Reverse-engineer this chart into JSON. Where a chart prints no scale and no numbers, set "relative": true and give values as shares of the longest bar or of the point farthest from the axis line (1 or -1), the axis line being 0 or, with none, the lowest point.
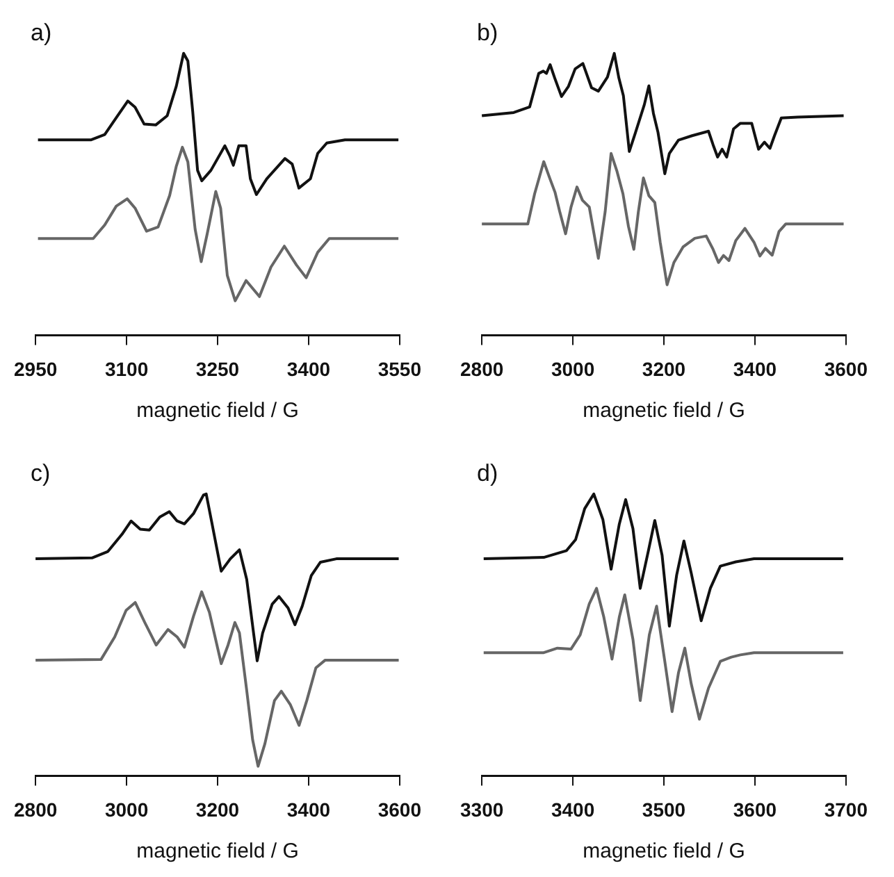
{
  "chart_data": [
    {
      "type": "line",
      "title": "a)",
      "xlabel": "magnetic field / G",
      "relative": true,
      "xlim": [
        2950,
        3550
      ],
      "xticks": [
        2950,
        3100,
        3250,
        3400,
        3550
      ],
      "series": [
        {
          "color": "#111111",
          "x": [
            2954,
            3041,
            3064,
            3083,
            3102,
            3114,
            3129,
            3148,
            3167,
            3182,
            3194,
            3201,
            3209,
            3217,
            3224,
            3239,
            3262,
            3270,
            3276,
            3285,
            3297,
            3304,
            3314,
            3331,
            3361,
            3373,
            3384,
            3403,
            3415,
            3430,
            3460,
            3548
          ],
          "values": [
            0.693,
            0.693,
            0.712,
            0.772,
            0.831,
            0.809,
            0.749,
            0.746,
            0.779,
            0.884,
            1.0,
            0.973,
            0.794,
            0.585,
            0.548,
            0.585,
            0.672,
            0.637,
            0.603,
            0.672,
            0.672,
            0.555,
            0.499,
            0.555,
            0.627,
            0.607,
            0.522,
            0.555,
            0.645,
            0.682,
            0.693,
            0.693
          ]
        },
        {
          "color": "#666666",
          "x": [
            2954,
            3045,
            3064,
            3083,
            3101,
            3114,
            3133,
            3152,
            3171,
            3182,
            3192,
            3201,
            3213,
            3223,
            3233,
            3247,
            3255,
            3266,
            3279,
            3297,
            3319,
            3338,
            3360,
            3380,
            3396,
            3415,
            3434,
            3548
          ],
          "values": [
            0.343,
            0.343,
            0.391,
            0.458,
            0.484,
            0.451,
            0.369,
            0.384,
            0.496,
            0.6,
            0.667,
            0.615,
            0.376,
            0.261,
            0.361,
            0.51,
            0.451,
            0.212,
            0.122,
            0.194,
            0.137,
            0.242,
            0.316,
            0.249,
            0.204,
            0.294,
            0.343,
            0.343
          ]
        }
      ]
    },
    {
      "type": "line",
      "title": "b)",
      "xlabel": "magnetic field / G",
      "relative": true,
      "xlim": [
        2800,
        3600
      ],
      "xticks": [
        2800,
        3000,
        3200,
        3400,
        3600
      ],
      "series": [
        {
          "color": "#111111",
          "x": [
            2800,
            2870,
            2905,
            2925,
            2935,
            2942,
            2950,
            2960,
            2975,
            2990,
            3005,
            3022,
            3041,
            3056,
            3076,
            3091,
            3101,
            3111,
            3124,
            3137,
            3157,
            3167,
            3177,
            3187,
            3202,
            3212,
            3232,
            3262,
            3298,
            3308,
            3318,
            3328,
            3338,
            3353,
            3368,
            3393,
            3408,
            3421,
            3433,
            3443,
            3458,
            3494,
            3595
          ],
          "values": [
            0.779,
            0.79,
            0.81,
            0.929,
            0.937,
            0.929,
            0.96,
            0.913,
            0.847,
            0.882,
            0.945,
            0.964,
            0.878,
            0.866,
            0.916,
            1.0,
            0.913,
            0.85,
            0.652,
            0.716,
            0.818,
            0.885,
            0.787,
            0.72,
            0.573,
            0.645,
            0.692,
            0.708,
            0.724,
            0.676,
            0.632,
            0.66,
            0.632,
            0.732,
            0.752,
            0.752,
            0.66,
            0.685,
            0.663,
            0.708,
            0.771,
            0.774,
            0.779
          ]
        },
        {
          "color": "#666666",
          "x": [
            2800,
            2901,
            2916,
            2936,
            2949,
            2961,
            2971,
            2984,
            2996,
            3009,
            3021,
            3036,
            3056,
            3071,
            3084,
            3097,
            3110,
            3122,
            3134,
            3144,
            3155,
            3167,
            3180,
            3192,
            3207,
            3222,
            3242,
            3268,
            3293,
            3308,
            3320,
            3331,
            3343,
            3358,
            3378,
            3398,
            3411,
            3423,
            3438,
            3453,
            3468,
            3595
          ],
          "values": [
            0.395,
            0.395,
            0.502,
            0.616,
            0.558,
            0.506,
            0.439,
            0.36,
            0.455,
            0.526,
            0.479,
            0.455,
            0.273,
            0.439,
            0.645,
            0.581,
            0.502,
            0.387,
            0.305,
            0.439,
            0.558,
            0.495,
            0.471,
            0.329,
            0.179,
            0.258,
            0.313,
            0.344,
            0.352,
            0.305,
            0.258,
            0.283,
            0.265,
            0.336,
            0.379,
            0.33,
            0.281,
            0.308,
            0.284,
            0.368,
            0.395,
            0.395
          ]
        }
      ]
    },
    {
      "type": "line",
      "title": "c)",
      "xlabel": "magnetic field / G",
      "relative": true,
      "xlim": [
        2800,
        3600
      ],
      "xticks": [
        2800,
        3000,
        3200,
        3400,
        3600
      ],
      "series": [
        {
          "color": "#111111",
          "x": [
            2800,
            2924,
            2959,
            2990,
            3010,
            3030,
            3050,
            3073,
            3094,
            3111,
            3127,
            3147,
            3169,
            3175,
            3187,
            3208,
            3228,
            3248,
            3264,
            3279,
            3287,
            3299,
            3320,
            3335,
            3355,
            3370,
            3386,
            3406,
            3426,
            3461,
            3598
          ],
          "values": [
            0.77,
            0.773,
            0.796,
            0.857,
            0.904,
            0.875,
            0.872,
            0.918,
            0.937,
            0.904,
            0.894,
            0.93,
            0.996,
            1.0,
            0.901,
            0.726,
            0.77,
            0.802,
            0.697,
            0.507,
            0.408,
            0.507,
            0.609,
            0.636,
            0.595,
            0.536,
            0.602,
            0.711,
            0.758,
            0.77,
            0.77
          ]
        },
        {
          "color": "#666666",
          "x": [
            2800,
            2944,
            2974,
            2999,
            3019,
            3040,
            3065,
            3091,
            3111,
            3127,
            3147,
            3165,
            3182,
            3208,
            3223,
            3238,
            3248,
            3264,
            3277,
            3289,
            3304,
            3325,
            3340,
            3360,
            3379,
            3396,
            3416,
            3436,
            3598
          ],
          "values": [
            0.41,
            0.413,
            0.493,
            0.587,
            0.615,
            0.544,
            0.464,
            0.519,
            0.493,
            0.456,
            0.566,
            0.653,
            0.58,
            0.398,
            0.464,
            0.544,
            0.507,
            0.303,
            0.128,
            0.034,
            0.114,
            0.267,
            0.3,
            0.252,
            0.179,
            0.267,
            0.383,
            0.41,
            0.41
          ]
        }
      ]
    },
    {
      "type": "line",
      "title": "d)",
      "xlabel": "magnetic field / G",
      "relative": true,
      "xlim": [
        3300,
        3700
      ],
      "xticks": [
        3300,
        3400,
        3500,
        3600,
        3700
      ],
      "series": [
        {
          "color": "#111111",
          "x": [
            3302,
            3368,
            3393,
            3403,
            3413,
            3423,
            3433,
            3442,
            3451,
            3458,
            3466,
            3474,
            3483,
            3490,
            3498,
            3506,
            3514,
            3522,
            3530,
            3541,
            3551,
            3562,
            3579,
            3599,
            3697
          ],
          "values": [
            0.77,
            0.775,
            0.799,
            0.838,
            0.948,
            1.0,
            0.909,
            0.733,
            0.893,
            0.98,
            0.877,
            0.665,
            0.799,
            0.906,
            0.783,
            0.531,
            0.712,
            0.833,
            0.72,
            0.55,
            0.665,
            0.744,
            0.759,
            0.77,
            0.77
          ]
        },
        {
          "color": "#666666",
          "x": [
            3302,
            3368,
            3383,
            3398,
            3408,
            3418,
            3426,
            3434,
            3443,
            3451,
            3457,
            3466,
            3474,
            3484,
            3492,
            3501,
            3509,
            3516,
            3523,
            3530,
            3539,
            3549,
            3562,
            3574,
            3584,
            3599,
            3697
          ],
          "values": [
            0.437,
            0.437,
            0.453,
            0.45,
            0.5,
            0.61,
            0.665,
            0.563,
            0.414,
            0.563,
            0.642,
            0.484,
            0.267,
            0.5,
            0.602,
            0.406,
            0.228,
            0.365,
            0.453,
            0.327,
            0.201,
            0.311,
            0.406,
            0.421,
            0.429,
            0.437,
            0.437
          ]
        }
      ]
    }
  ]
}
